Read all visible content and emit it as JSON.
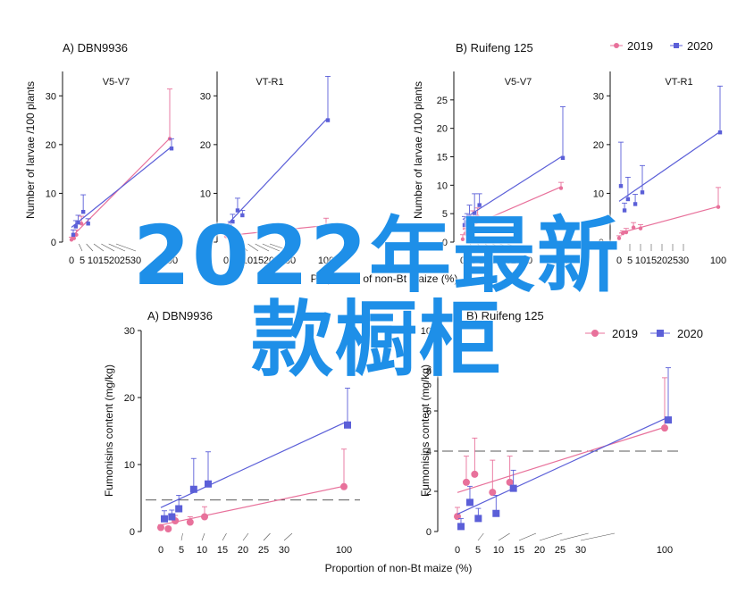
{
  "colors": {
    "c2019": "#e8719b",
    "c2020": "#5b5fd8",
    "banner": "#1e8fe8"
  },
  "banner": {
    "line1": "2022年最新",
    "line2": "款橱柜"
  },
  "legend_top": {
    "items": [
      {
        "label": "2019"
      },
      {
        "label": "2020"
      }
    ]
  },
  "legend_bottom": {
    "items": [
      {
        "label": "2019"
      },
      {
        "label": "2020"
      }
    ]
  },
  "top_row": {
    "ylabel": "Number of larvae /100 plants",
    "xlabel": "Proportion of non-Bt maize (%)"
  },
  "bottom_row": {
    "ylabel": "Fumonisins content (mg/kg)",
    "xlabel": "Proportion of non-Bt maize (%)"
  },
  "chart_data": [
    {
      "type": "scatter",
      "title": "A) DBN9936",
      "subtitle": "V5-V7",
      "xlabel": "",
      "ylabel": "Number of larvae /100 plants",
      "xticks": [
        "0",
        "5",
        "10",
        "15",
        "20",
        "25",
        "30",
        "100"
      ],
      "ylim": [
        0,
        35
      ],
      "yticks": [
        0,
        10,
        20,
        30
      ],
      "series": [
        {
          "name": "2019",
          "x": [
            0,
            1.7,
            3.3,
            6.7,
            100
          ],
          "y": [
            0.5,
            0.8,
            1.5,
            3.8,
            21.2
          ],
          "err": [
            0.5,
            0.6,
            1.0,
            1.5,
            10.2
          ]
        },
        {
          "name": "2020",
          "x": [
            0,
            1.7,
            3.3,
            6.7,
            10,
            100
          ],
          "y": [
            1.5,
            3.2,
            4.0,
            6.2,
            3.8,
            19.2
          ],
          "err": [
            1.0,
            1.2,
            1.5,
            3.5,
            1.0,
            2.0
          ]
        }
      ]
    },
    {
      "type": "scatter",
      "title": "",
      "subtitle": "VT-R1",
      "xlabel": "",
      "ylabel": "",
      "xticks": [
        "0",
        "5",
        "10",
        "15",
        "20",
        "25",
        "30",
        "100"
      ],
      "ylim": [
        0,
        35
      ],
      "yticks": [
        0,
        10,
        20,
        30
      ],
      "series": [
        {
          "name": "2019",
          "x": [
            0,
            3.3,
            100
          ],
          "y": [
            1.2,
            1.5,
            3.4
          ],
          "err": [
            0.8,
            0.8,
            1.5
          ]
        },
        {
          "name": "2020",
          "x": [
            0,
            1.7,
            3.3,
            6.7,
            10,
            100
          ],
          "y": [
            2.0,
            3.2,
            4.2,
            6.5,
            5.5,
            25.0
          ],
          "err": [
            1.0,
            1.0,
            1.5,
            2.5,
            1.0,
            9.0
          ]
        }
      ]
    },
    {
      "type": "scatter",
      "title": "B) Ruifeng 125",
      "subtitle": "V5-V7",
      "xlabel": "",
      "ylabel": "Number of larvae /100 plants",
      "xticks": [
        "0",
        "5",
        "10",
        "15",
        "20",
        "25",
        "30",
        "100"
      ],
      "ylim": [
        0,
        30
      ],
      "yticks": [
        0,
        5,
        10,
        15,
        20,
        25
      ],
      "series": [
        {
          "name": "2019",
          "x": [
            0,
            1.7,
            3.3,
            6.7,
            10,
            100
          ],
          "y": [
            0.5,
            1.5,
            3.0,
            3.5,
            4.5,
            9.5
          ],
          "err": [
            0.8,
            1.0,
            1.5,
            2.0,
            1.5,
            1.0
          ]
        },
        {
          "name": "2020",
          "x": [
            0,
            1.7,
            3.3,
            6.7,
            10,
            100
          ],
          "y": [
            3.0,
            3.5,
            4.5,
            5.0,
            6.5,
            14.8
          ],
          "err": [
            1.5,
            1.5,
            2.0,
            3.5,
            2.0,
            9.0
          ]
        }
      ]
    },
    {
      "type": "scatter",
      "title": "",
      "subtitle": "VT-R1",
      "xlabel": "",
      "ylabel": "",
      "xticks": [
        "0",
        "5",
        "10",
        "15",
        "20",
        "25",
        "30",
        "100"
      ],
      "ylim": [
        0,
        35
      ],
      "yticks": [
        0,
        10,
        20,
        30
      ],
      "series": [
        {
          "name": "2019",
          "x": [
            0,
            1.7,
            3.3,
            6.7,
            10,
            100
          ],
          "y": [
            0.8,
            1.8,
            2.0,
            3.0,
            2.8,
            7.2
          ],
          "err": [
            0.5,
            0.5,
            0.8,
            1.0,
            0.8,
            4.0
          ]
        },
        {
          "name": "2020",
          "x": [
            0,
            1.7,
            3.3,
            6.7,
            10,
            100
          ],
          "y": [
            11.5,
            6.5,
            8.8,
            7.8,
            10.2,
            22.5
          ],
          "err": [
            9.0,
            1.5,
            4.5,
            2.0,
            5.5,
            9.5
          ]
        }
      ]
    },
    {
      "type": "scatter",
      "title": "A) DBN9936",
      "subtitle": "",
      "xlabel": "Proportion of non-Bt maize (%)",
      "ylabel": "Fumonisins content (mg/kg)",
      "xticks": [
        "0",
        "5",
        "10",
        "15",
        "20",
        "25",
        "30",
        "100"
      ],
      "ylim": [
        0,
        30
      ],
      "yticks": [
        0,
        10,
        20,
        30
      ],
      "reference_y": 4.7,
      "series": [
        {
          "name": "2019",
          "x": [
            0,
            1.7,
            3.3,
            6.7,
            10,
            100
          ],
          "y": [
            0.6,
            0.4,
            1.6,
            1.4,
            2.2,
            6.7
          ],
          "err": [
            0.4,
            0.3,
            0.8,
            0.8,
            1.5,
            5.6
          ]
        },
        {
          "name": "2020",
          "x": [
            0,
            1.7,
            3.3,
            6.7,
            10,
            100
          ],
          "y": [
            1.9,
            2.2,
            3.4,
            6.3,
            7.1,
            15.9
          ],
          "err": [
            1.2,
            1.0,
            2.0,
            4.6,
            4.8,
            5.5
          ]
        }
      ]
    },
    {
      "type": "scatter",
      "title": "B) Ruifeng 125",
      "subtitle": "",
      "xlabel": "",
      "ylabel": "Fumonisins content (mg/kg)",
      "xticks": [
        "0",
        "5",
        "10",
        "15",
        "20",
        "25",
        "30",
        "100"
      ],
      "ylim": [
        0,
        10
      ],
      "yticks": [
        0,
        2,
        4,
        6,
        8,
        10
      ],
      "reference_y": 4.0,
      "series": [
        {
          "name": "2019",
          "x": [
            0,
            1.7,
            3.3,
            6.7,
            10,
            100
          ],
          "y": [
            0.75,
            2.45,
            2.85,
            1.95,
            2.45,
            5.15
          ],
          "err": [
            0.45,
            1.3,
            1.8,
            1.6,
            1.3,
            2.5
          ]
        },
        {
          "name": "2020",
          "x": [
            0,
            1.7,
            3.3,
            6.7,
            10,
            100
          ],
          "y": [
            0.25,
            1.45,
            0.65,
            0.9,
            2.15,
            5.55
          ],
          "err": [
            0.4,
            0.8,
            0.5,
            0.9,
            0.9,
            2.6
          ]
        }
      ]
    }
  ]
}
